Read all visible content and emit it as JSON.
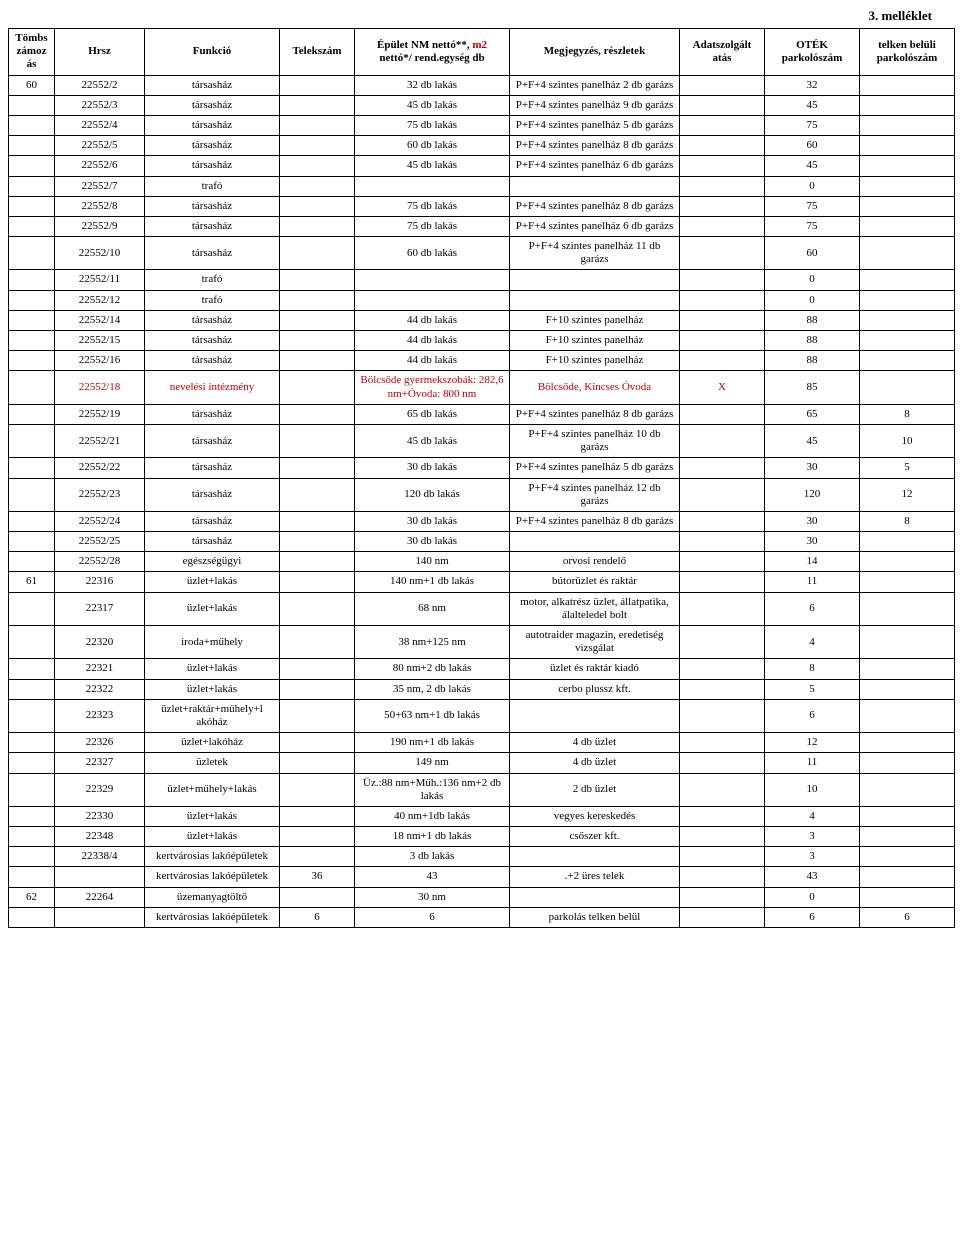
{
  "page_title": "3. melléklet",
  "headers": {
    "tomb": "Tömbs zámoz ás",
    "hrsz": "Hrsz",
    "funkcio": "Funkció",
    "telekszam": "Telekszám",
    "epulet_line1": "Épület NM nettó**,",
    "epulet_m2": " m2",
    "epulet_line2": "nettó*/ rend.egység db",
    "megjegyzes": "Megjegyzés, részletek",
    "adat": "Adatszolgált atás",
    "otek": "OTÉK parkolószám",
    "belul": "telken belüli parkolószám"
  },
  "rows": [
    {
      "tomb": "60",
      "hrsz": "22552/2",
      "funk": "társasház",
      "telek": "",
      "epulet": "32 db lakás",
      "megj": "P+F+4 szintes panelház 2 db garázs",
      "adat": "",
      "otek": "32",
      "belul": ""
    },
    {
      "tomb": "",
      "hrsz": "22552/3",
      "funk": "társasház",
      "telek": "",
      "epulet": "45 db lakás",
      "megj": "P+F+4 szintes panelház 9 db garázs",
      "adat": "",
      "otek": "45",
      "belul": ""
    },
    {
      "tomb": "",
      "hrsz": "22552/4",
      "funk": "társasház",
      "telek": "",
      "epulet": "75 db lakás",
      "megj": "P+F+4 szintes panelház 5 db garázs",
      "adat": "",
      "otek": "75",
      "belul": ""
    },
    {
      "tomb": "",
      "hrsz": "22552/5",
      "funk": "társasház",
      "telek": "",
      "epulet": "60 db lakás",
      "megj": "P+F+4 szintes panelház 8 db garázs",
      "adat": "",
      "otek": "60",
      "belul": ""
    },
    {
      "tomb": "",
      "hrsz": "22552/6",
      "funk": "társasház",
      "telek": "",
      "epulet": "45 db lakás",
      "megj": "P+F+4 szintes panelház 6 db garázs",
      "adat": "",
      "otek": "45",
      "belul": ""
    },
    {
      "tomb": "",
      "hrsz": "22552/7",
      "funk": "trafó",
      "telek": "",
      "epulet": "",
      "megj": "",
      "adat": "",
      "otek": "0",
      "belul": ""
    },
    {
      "tomb": "",
      "hrsz": "22552/8",
      "funk": "társasház",
      "telek": "",
      "epulet": "75 db lakás",
      "megj": "P+F+4 szintes panelház 8 db garázs",
      "adat": "",
      "otek": "75",
      "belul": ""
    },
    {
      "tomb": "",
      "hrsz": "22552/9",
      "funk": "társasház",
      "telek": "",
      "epulet": "75 db lakás",
      "megj": "P+F+4 szintes panelház 6 db garázs",
      "adat": "",
      "otek": "75",
      "belul": ""
    },
    {
      "tomb": "",
      "hrsz": "22552/10",
      "funk": "társasház",
      "telek": "",
      "epulet": "60 db lakás",
      "megj": "P+F+4 szintes panelház 11 db garázs",
      "adat": "",
      "otek": "60",
      "belul": ""
    },
    {
      "tomb": "",
      "hrsz": "22552/11",
      "funk": "trafó",
      "telek": "",
      "epulet": "",
      "megj": "",
      "adat": "",
      "otek": "0",
      "belul": ""
    },
    {
      "tomb": "",
      "hrsz": "22552/12",
      "funk": "trafó",
      "telek": "",
      "epulet": "",
      "megj": "",
      "adat": "",
      "otek": "0",
      "belul": ""
    },
    {
      "tomb": "",
      "hrsz": "22552/14",
      "funk": "társasház",
      "telek": "",
      "epulet": "44 db lakás",
      "megj": "F+10 szintes panelház",
      "adat": "",
      "otek": "88",
      "belul": ""
    },
    {
      "tomb": "",
      "hrsz": "22552/15",
      "funk": "társasház",
      "telek": "",
      "epulet": "44 db lakás",
      "megj": "F+10 szintes panelház",
      "adat": "",
      "otek": "88",
      "belul": ""
    },
    {
      "tomb": "",
      "hrsz": "22552/16",
      "funk": "társasház",
      "telek": "",
      "epulet": "44 db lakás",
      "megj": "F+10 szintes panelház",
      "adat": "",
      "otek": "88",
      "belul": ""
    },
    {
      "tomb": "",
      "hrsz": "22552/18",
      "funk": "nevelési intézmény",
      "telek": "",
      "epulet": "Bölcsőde gyermekszobák: 282,6 nm+Óvoda: 800 nm",
      "megj": "Bölcsőde, Kincses Óvoda",
      "adat": "X",
      "otek": "85",
      "belul": "",
      "red": true
    },
    {
      "tomb": "",
      "hrsz": "22552/19",
      "funk": "társasház",
      "telek": "",
      "epulet": "65 db lakás",
      "megj": "P+F+4 szintes panelház 8 db garázs",
      "adat": "",
      "otek": "65",
      "belul": "8"
    },
    {
      "tomb": "",
      "hrsz": "22552/21",
      "funk": "társasház",
      "telek": "",
      "epulet": "45 db lakás",
      "megj": "P+F+4 szintes panelház 10 db garázs",
      "adat": "",
      "otek": "45",
      "belul": "10"
    },
    {
      "tomb": "",
      "hrsz": "22552/22",
      "funk": "társasház",
      "telek": "",
      "epulet": "30 db lakás",
      "megj": "P+F+4 szintes panelház 5 db garázs",
      "adat": "",
      "otek": "30",
      "belul": "5"
    },
    {
      "tomb": "",
      "hrsz": "22552/23",
      "funk": "társasház",
      "telek": "",
      "epulet": "120 db lakás",
      "megj": "P+F+4 szintes panelház 12 db garázs",
      "adat": "",
      "otek": "120",
      "belul": "12"
    },
    {
      "tomb": "",
      "hrsz": "22552/24",
      "funk": "társasház",
      "telek": "",
      "epulet": "30 db lakás",
      "megj": "P+F+4 szintes panelház 8 db garázs",
      "adat": "",
      "otek": "30",
      "belul": "8"
    },
    {
      "tomb": "",
      "hrsz": "22552/25",
      "funk": "társasház",
      "telek": "",
      "epulet": "30 db lakás",
      "megj": "",
      "adat": "",
      "otek": "30",
      "belul": ""
    },
    {
      "tomb": "",
      "hrsz": "22552/28",
      "funk": "egészségügyi",
      "telek": "",
      "epulet": "140 nm",
      "megj": "orvosi rendelő",
      "adat": "",
      "otek": "14",
      "belul": ""
    },
    {
      "tomb": "61",
      "hrsz": "22316",
      "funk": "üzlet+lakás",
      "telek": "",
      "epulet": "140 nm+1 db lakás",
      "megj": "bútorüzlet és raktár",
      "adat": "",
      "otek": "11",
      "belul": ""
    },
    {
      "tomb": "",
      "hrsz": "22317",
      "funk": "üzlet+lakás",
      "telek": "",
      "epulet": "68 nm",
      "megj": "motor, alkatrész üzlet, állatpatika, álalteledel bolt",
      "adat": "",
      "otek": "6",
      "belul": ""
    },
    {
      "tomb": "",
      "hrsz": "22320",
      "funk": "iroda+műhely",
      "telek": "",
      "epulet": "38 nm+125 nm",
      "megj": "autotraider magazin, eredetiség vizsgálat",
      "adat": "",
      "otek": "4",
      "belul": ""
    },
    {
      "tomb": "",
      "hrsz": "22321",
      "funk": "üzlet+lakás",
      "telek": "",
      "epulet": "80 nm+2 db lakás",
      "megj": "üzlet és raktár kiadó",
      "adat": "",
      "otek": "8",
      "belul": ""
    },
    {
      "tomb": "",
      "hrsz": "22322",
      "funk": "üzlet+lakás",
      "telek": "",
      "epulet": "35 nm, 2 db lakás",
      "megj": "cerbo plussz kft.",
      "adat": "",
      "otek": "5",
      "belul": ""
    },
    {
      "tomb": "",
      "hrsz": "22323",
      "funk": "üzlet+raktár+műhely+l akóház",
      "telek": "",
      "epulet": "50+63 nm+1 db lakás",
      "megj": "",
      "adat": "",
      "otek": "6",
      "belul": ""
    },
    {
      "tomb": "",
      "hrsz": "22326",
      "funk": "üzlet+lakóház",
      "telek": "",
      "epulet": "190 nm+1 db lakás",
      "megj": "4 db üzlet",
      "adat": "",
      "otek": "12",
      "belul": ""
    },
    {
      "tomb": "",
      "hrsz": "22327",
      "funk": "üzletek",
      "telek": "",
      "epulet": "149 nm",
      "megj": "4 db üzlet",
      "adat": "",
      "otek": "11",
      "belul": ""
    },
    {
      "tomb": "",
      "hrsz": "22329",
      "funk": "üzlet+műhely+lakás",
      "telek": "",
      "epulet": "Üz.:88 nm+Műh.:136 nm+2 db lakás",
      "megj": "2 db üzlet",
      "adat": "",
      "otek": "10",
      "belul": ""
    },
    {
      "tomb": "",
      "hrsz": "22330",
      "funk": "üzlet+lakás",
      "telek": "",
      "epulet": "40 nm+1db lakás",
      "megj": "vegyes kereskedés",
      "adat": "",
      "otek": "4",
      "belul": ""
    },
    {
      "tomb": "",
      "hrsz": "22348",
      "funk": "üzlet+lakás",
      "telek": "",
      "epulet": "18 nm+1 db lakás",
      "megj": "csőszer kft.",
      "adat": "",
      "otek": "3",
      "belul": ""
    },
    {
      "tomb": "",
      "hrsz": "22338/4",
      "funk": "kertvárosias lakóépületek",
      "telek": "",
      "epulet": "3 db lakás",
      "megj": "",
      "adat": "",
      "otek": "3",
      "belul": ""
    },
    {
      "tomb": "",
      "hrsz": "",
      "funk": "kertvárosias lakóépületek",
      "telek": "36",
      "epulet": "43",
      "megj": ".+2 üres telek",
      "adat": "",
      "otek": "43",
      "belul": ""
    },
    {
      "tomb": "62",
      "hrsz": "22264",
      "funk": "üzemanyagtöltő",
      "telek": "",
      "epulet": "30 nm",
      "megj": "",
      "adat": "",
      "otek": "0",
      "belul": ""
    },
    {
      "tomb": "",
      "hrsz": "",
      "funk": "kertvárosias lakóépületek",
      "telek": "6",
      "epulet": "6",
      "megj": "parkolás telken belül",
      "adat": "",
      "otek": "6",
      "belul": "6"
    }
  ]
}
